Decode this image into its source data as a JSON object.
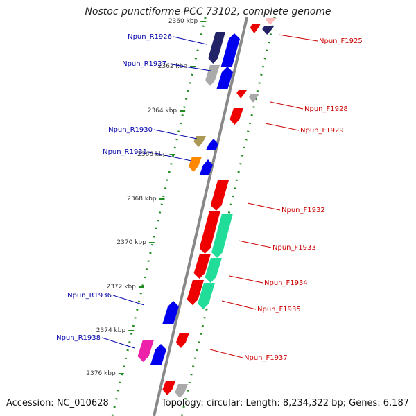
{
  "title": "Nostoc punctiforme PCC 73102, complete genome",
  "footer": {
    "accession": "Accession: NC_010628",
    "topology": "Topology: circular; Length: 8,234,322 bp; Genes: 6,187"
  },
  "colors": {
    "axis": "#888888",
    "track": "#228b22",
    "forward_label": "#cc0000",
    "reverse_label": "#0000aa",
    "red_gene": "#ee0000",
    "blue_gene": "#0000ee",
    "green_gene": "#22dd99",
    "orange_gene": "#ff8800",
    "khaki_gene": "#aa9955",
    "magenta_gene": "#ee22aa",
    "gray_gene": "#aaaaaa",
    "navy_gene": "#222266",
    "pink_gene": "#ffbbbb"
  },
  "ruler": [
    {
      "label": "2360 kbp"
    },
    {
      "label": "2362 kbp"
    },
    {
      "label": "2364 kbp"
    },
    {
      "label": "2366 kbp"
    },
    {
      "label": "2368 kbp"
    },
    {
      "label": "2370 kbp"
    },
    {
      "label": "2372 kbp"
    },
    {
      "label": "2374 kbp"
    },
    {
      "label": "2376 kbp"
    }
  ],
  "reverse_labels": [
    "Npun_R1926",
    "Npun_R1927",
    "Npun_R1930",
    "Npun_R1931",
    "Npun_R1936",
    "Npun_R1938"
  ],
  "forward_labels": [
    "Npun_F1925",
    "Npun_F1928",
    "Npun_F1929",
    "Npun_F1932",
    "Npun_F1933",
    "Npun_F1934",
    "Npun_F1935",
    "Npun_F1937"
  ]
}
